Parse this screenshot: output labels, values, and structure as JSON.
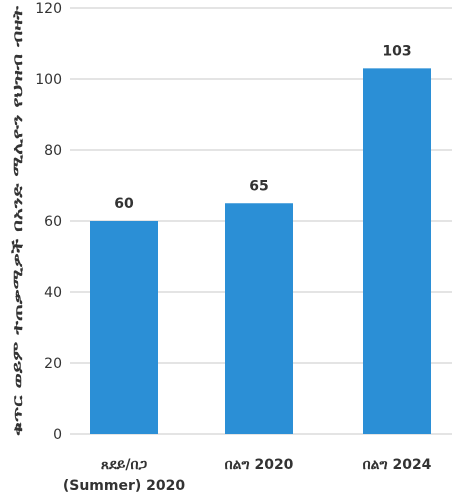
{
  "chart_data": {
    "type": "bar",
    "title": "",
    "xlabel": "",
    "ylabel": "ቁጥር ወይም ተጠቃሚዎች በአንድ ሚሊዮን የህዝብ ብዛት",
    "categories": [
      [
        "ጸደይ/በጋ",
        "(Summer) 2020"
      ],
      [
        "በልግ 2020"
      ],
      [
        "በልግ 2024"
      ]
    ],
    "values": [
      60,
      65,
      103
    ],
    "value_labels": [
      "60",
      "65",
      "103"
    ],
    "ylim": [
      0,
      120
    ],
    "yticks": [
      0,
      20,
      40,
      60,
      80,
      100,
      120
    ],
    "grid": true,
    "bar_color": "#2b8fd6",
    "grid_color": "#c8c8c8",
    "text_color": "#333333"
  }
}
